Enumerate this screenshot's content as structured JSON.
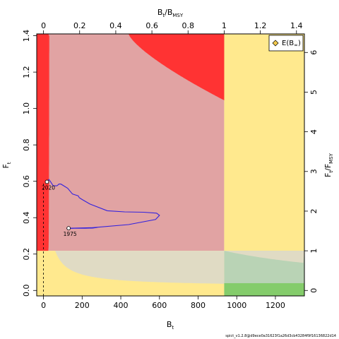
{
  "chart_data": {
    "type": "line",
    "xlabel": "B",
    "xlabel_sub": "t",
    "ylabel": "F",
    "ylabel_sub": "t",
    "top_label": "B",
    "top_label_sub": "t",
    "top_label_sep": "/",
    "top_label2": "B",
    "top_label2_sub": "MSY",
    "right_label": "F",
    "right_label_sub": "t",
    "right_label_sep": "/",
    "right_label2": "F",
    "right_label2_sub": "MSY",
    "xlim": [
      -35,
      1350
    ],
    "ylim": [
      -0.03,
      1.41
    ],
    "bmsy": 935,
    "fmsy": 0.218,
    "kobe_colors": {
      "red": "#ff3333",
      "pink": "#e1a3a3",
      "yellow": "#ffe98e",
      "beige": "#e0dbc4",
      "lightgreen": "#b9d3b5",
      "green": "#84cc6b"
    },
    "x_ticks": [
      "0",
      "200",
      "400",
      "600",
      "800",
      "1000",
      "1200"
    ],
    "x_tick_values": [
      0,
      200,
      400,
      600,
      800,
      1000,
      1200
    ],
    "y_ticks": [
      "0.0",
      "0.2",
      "0.4",
      "0.6",
      "0.8",
      "1.0",
      "1.2",
      "1.4"
    ],
    "y_tick_values": [
      0,
      0.2,
      0.4,
      0.6,
      0.8,
      1.0,
      1.2,
      1.4
    ],
    "top_ticks": [
      "0",
      "0.2",
      "0.4",
      "0.6",
      "0.8",
      "1",
      "1.2",
      "1.4"
    ],
    "top_tick_values": [
      0,
      0.2,
      0.4,
      0.6,
      0.8,
      1.0,
      1.2,
      1.4
    ],
    "right_ticks": [
      "0",
      "1",
      "2",
      "3",
      "4",
      "5",
      "6"
    ],
    "right_tick_values": [
      0,
      1,
      2,
      3,
      4,
      5,
      6
    ],
    "series": [
      {
        "color": "#3322dd",
        "x": [
          280,
          255,
          215,
          160,
          120,
          130,
          250,
          440,
          580,
          600,
          585,
          520,
          420,
          330,
          240,
          200,
          185,
          180,
          165,
          150,
          125,
          105,
          90,
          80,
          70,
          50,
          35,
          28,
          20,
          18
        ],
        "y": [
          0.347,
          0.343,
          0.342,
          0.342,
          0.34,
          0.342,
          0.345,
          0.362,
          0.39,
          0.413,
          0.425,
          0.43,
          0.432,
          0.438,
          0.475,
          0.5,
          0.51,
          0.52,
          0.525,
          0.53,
          0.562,
          0.575,
          0.585,
          0.585,
          0.575,
          0.575,
          0.6,
          0.61,
          0.6,
          0.597
        ]
      }
    ],
    "points": [
      {
        "label": "2020",
        "x": 18,
        "y": 0.597
      },
      {
        "label": "1975",
        "x": 130,
        "y": 0.342
      }
    ],
    "legend": {
      "label": "E(B",
      "label_sub": "∞",
      "label_end": ")",
      "marker_color": "#f2c94c",
      "position": "top-right"
    }
  },
  "footer": "spict_v1.2.8@d9ece0a31623f1a26d3cb43284f9f16136822d14"
}
